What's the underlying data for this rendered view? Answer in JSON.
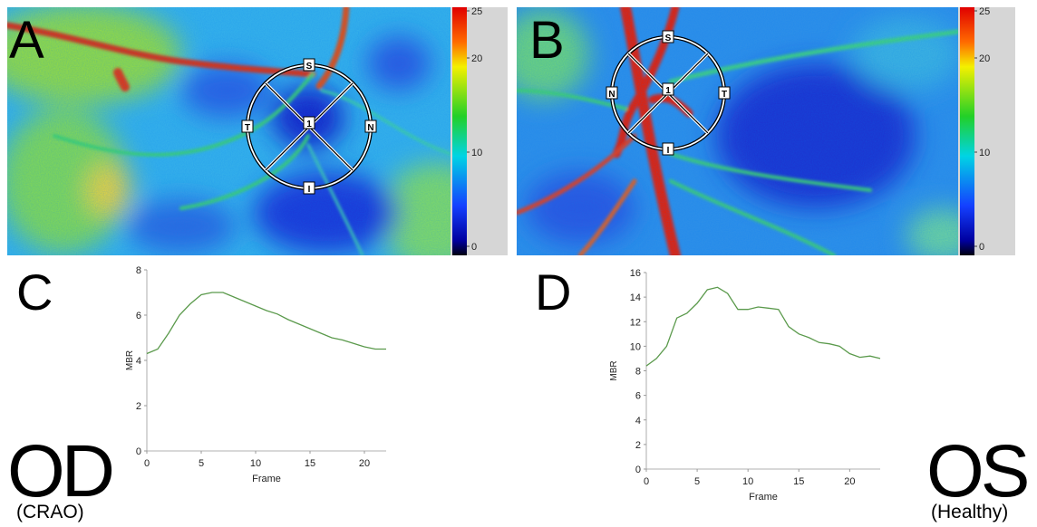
{
  "chart_data": [
    {
      "type": "heatmap",
      "panel_label": "A",
      "clim": [
        0,
        25
      ],
      "cticks": [
        0,
        10,
        20,
        25
      ],
      "sector_labels": {
        "superior": "S",
        "temporal": "T",
        "nasal": "N",
        "inferior": "I"
      },
      "center_label": "1"
    },
    {
      "type": "heatmap",
      "panel_label": "B",
      "clim": [
        0,
        25
      ],
      "cticks": [
        0,
        10,
        20,
        25
      ],
      "sector_labels": {
        "superior": "S",
        "nasal": "N",
        "temporal": "T",
        "inferior": "I"
      },
      "center_label": "1"
    },
    {
      "type": "line",
      "panel_label": "C",
      "eye": "OD",
      "condition": "(CRAO)",
      "x_label": "Frame",
      "y_label": "MBR",
      "color": "#5b9a4c",
      "x": [
        0,
        1,
        2,
        3,
        4,
        5,
        6,
        7,
        8,
        9,
        10,
        11,
        12,
        13,
        14,
        15,
        16,
        17,
        18,
        19,
        20,
        21,
        22
      ],
      "values": [
        4.3,
        4.5,
        5.2,
        6.0,
        6.5,
        6.9,
        7.0,
        7.0,
        6.8,
        6.6,
        6.4,
        6.2,
        6.05,
        5.8,
        5.6,
        5.4,
        5.2,
        5.0,
        4.9,
        4.75,
        4.6,
        4.5,
        4.5
      ],
      "xlim": [
        0,
        22
      ],
      "xticks": [
        0,
        5,
        10,
        15,
        20
      ],
      "ylim": [
        0,
        8
      ],
      "yticks": [
        0,
        2,
        4,
        6,
        8
      ]
    },
    {
      "type": "line",
      "panel_label": "D",
      "eye": "OS",
      "condition": "(Healthy)",
      "x_label": "Frame",
      "y_label": "MBR",
      "color": "#5b9a4c",
      "x": [
        0,
        1,
        2,
        3,
        4,
        5,
        6,
        7,
        8,
        9,
        10,
        11,
        12,
        13,
        14,
        15,
        16,
        17,
        18,
        19,
        20,
        21,
        22,
        23
      ],
      "values": [
        8.4,
        9.0,
        10.0,
        12.3,
        12.7,
        13.5,
        14.6,
        14.8,
        14.3,
        13.0,
        13.0,
        13.2,
        13.1,
        13.0,
        11.6,
        11.0,
        10.7,
        10.3,
        10.2,
        10.0,
        9.4,
        9.1,
        9.2,
        9.0
      ],
      "xlim": [
        0,
        23
      ],
      "xticks": [
        0,
        5,
        10,
        15,
        20
      ],
      "ylim": [
        0,
        16
      ],
      "yticks": [
        0,
        2,
        4,
        6,
        8,
        10,
        12,
        14,
        16
      ]
    }
  ]
}
